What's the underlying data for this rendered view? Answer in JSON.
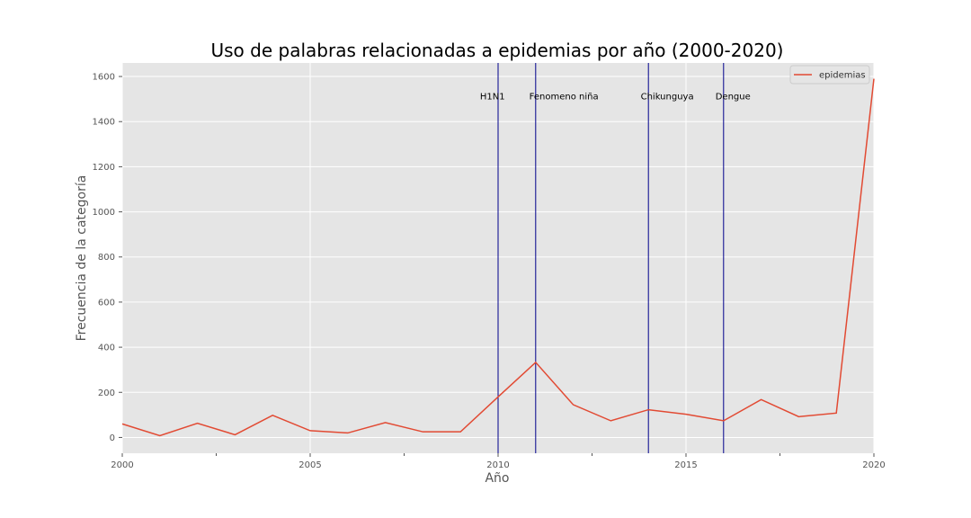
{
  "chart_data": {
    "type": "line",
    "title": "Uso de palabras relacionadas a epidemias por año (2000-2020)",
    "xlabel": "Año",
    "ylabel": "Frecuencia de la categoría",
    "xlim": [
      2000,
      2020
    ],
    "ylim": [
      -70,
      1660
    ],
    "x_ticks": [
      2000,
      2005,
      2010,
      2015,
      2020
    ],
    "x_tick_labels": [
      "2000",
      "2005",
      "2010",
      "2015",
      "2020"
    ],
    "x_minor_ticks": [
      2002.5,
      2007.5,
      2012.5,
      2017.5
    ],
    "y_ticks": [
      0,
      200,
      400,
      600,
      800,
      1000,
      1200,
      1400,
      1600
    ],
    "y_tick_labels": [
      "0",
      "200",
      "400",
      "600",
      "800",
      "1000",
      "1200",
      "1400",
      "1600"
    ],
    "grid": true,
    "legend_position": "top-right",
    "background": "#e5e5e5",
    "series": [
      {
        "name": "epidemias",
        "color": "#e24a33",
        "x": [
          2000,
          2001,
          2002,
          2003,
          2004,
          2005,
          2006,
          2007,
          2008,
          2009,
          2010,
          2011,
          2012,
          2013,
          2014,
          2015,
          2016,
          2017,
          2018,
          2019,
          2020
        ],
        "values": [
          60,
          8,
          63,
          12,
          98,
          30,
          20,
          66,
          25,
          25,
          180,
          333,
          145,
          74,
          123,
          103,
          74,
          168,
          92,
          108,
          1590
        ]
      }
    ],
    "vlines": {
      "color": "#00008b",
      "x": [
        2010,
        2011,
        2014,
        2016
      ]
    },
    "annotations": [
      {
        "x": 2009.85,
        "y": 1510,
        "text": "H1N1"
      },
      {
        "x": 2011.75,
        "y": 1510,
        "text": "Fenomeno niña"
      },
      {
        "x": 2014.5,
        "y": 1510,
        "text": "Chikunguya"
      },
      {
        "x": 2016.25,
        "y": 1510,
        "text": "Dengue"
      }
    ]
  }
}
